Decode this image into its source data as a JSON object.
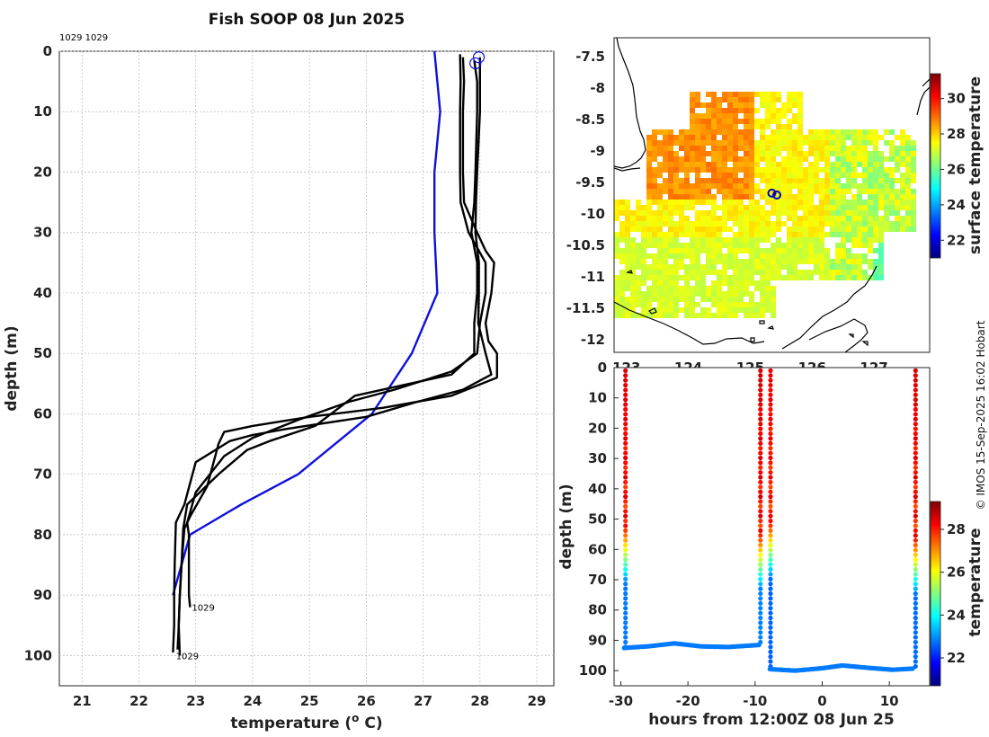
{
  "title": "Fish SOOP 08 Jun 2025",
  "header_ids": "1029 1029",
  "credit": "© IMOS 15-Sep-2025 16:02 Hobart",
  "colors": {
    "profile": "#000000",
    "climatology": "#1010dd",
    "grid": "#b8b8b8"
  },
  "chart_data": [
    {
      "type": "line",
      "name": "temperature-profiles",
      "xlabel": "temperature (",
      "xlabel_sup": "o",
      "xlabel_end": " C)",
      "ylabel": "depth (m)",
      "xlim": [
        20.6,
        29.3
      ],
      "ylim": [
        105,
        0
      ],
      "xticks": [
        21,
        22,
        23,
        24,
        25,
        26,
        27,
        28,
        29
      ],
      "yticks": [
        0,
        10,
        20,
        30,
        40,
        50,
        60,
        70,
        80,
        90,
        100
      ],
      "series": [
        {
          "name": "climatology",
          "color": "#1010dd",
          "points": [
            [
              27.2,
              0
            ],
            [
              27.25,
              5
            ],
            [
              27.3,
              10
            ],
            [
              27.2,
              20
            ],
            [
              27.2,
              30
            ],
            [
              27.25,
              40
            ],
            [
              26.8,
              50
            ],
            [
              26.1,
              60
            ],
            [
              24.8,
              70
            ],
            [
              23.8,
              75
            ],
            [
              22.9,
              80
            ],
            [
              22.75,
              85
            ],
            [
              22.6,
              90
            ]
          ]
        },
        {
          "name": "profile-1",
          "color": "#000000",
          "points": [
            [
              27.7,
              1
            ],
            [
              27.72,
              5
            ],
            [
              27.7,
              10
            ],
            [
              27.7,
              20
            ],
            [
              27.72,
              25
            ],
            [
              27.95,
              30
            ],
            [
              28.1,
              33
            ],
            [
              28.25,
              35
            ],
            [
              28.2,
              40
            ],
            [
              28.1,
              45
            ],
            [
              28.15,
              48
            ],
            [
              28.3,
              50
            ],
            [
              28.3,
              54
            ],
            [
              27.5,
              57
            ],
            [
              26.3,
              59
            ],
            [
              25.0,
              60.5
            ],
            [
              24.0,
              62
            ],
            [
              23.5,
              63
            ],
            [
              23.4,
              65
            ],
            [
              23.2,
              72
            ],
            [
              22.9,
              77
            ],
            [
              22.8,
              79
            ],
            [
              22.75,
              85
            ],
            [
              22.72,
              90
            ],
            [
              22.7,
              95
            ],
            [
              22.68,
              99
            ]
          ]
        },
        {
          "name": "profile-2",
          "color": "#000000",
          "points": [
            [
              27.65,
              0.5
            ],
            [
              27.66,
              5
            ],
            [
              27.65,
              10
            ],
            [
              27.65,
              20
            ],
            [
              27.66,
              25
            ],
            [
              27.8,
              30
            ],
            [
              28.1,
              35
            ],
            [
              28.1,
              40
            ],
            [
              28.0,
              45
            ],
            [
              27.95,
              50
            ],
            [
              27.5,
              53
            ],
            [
              26.5,
              56
            ],
            [
              25.7,
              58
            ],
            [
              24.8,
              61
            ],
            [
              24.0,
              64
            ],
            [
              23.5,
              67
            ],
            [
              23.0,
              73
            ],
            [
              22.85,
              78
            ],
            [
              22.88,
              80
            ],
            [
              22.88,
              85
            ],
            [
              22.88,
              90
            ],
            [
              22.9,
              92
            ]
          ]
        },
        {
          "name": "profile-3",
          "color": "#000000",
          "points": [
            [
              27.9,
              1.5
            ],
            [
              27.95,
              5
            ],
            [
              27.95,
              10
            ],
            [
              27.92,
              20
            ],
            [
              27.9,
              25
            ],
            [
              27.85,
              30
            ],
            [
              27.95,
              35
            ],
            [
              27.95,
              40
            ],
            [
              27.9,
              45
            ],
            [
              27.9,
              50
            ],
            [
              27.5,
              53.5
            ],
            [
              25.8,
              57
            ],
            [
              25.1,
              62
            ],
            [
              24.3,
              64.5
            ],
            [
              23.9,
              66
            ],
            [
              23.4,
              70
            ],
            [
              22.85,
              75
            ],
            [
              22.78,
              79
            ],
            [
              22.75,
              85
            ],
            [
              22.72,
              90
            ],
            [
              22.7,
              95
            ],
            [
              22.72,
              100
            ]
          ]
        },
        {
          "name": "profile-4",
          "color": "#000000",
          "points": [
            [
              28.0,
              1
            ],
            [
              28.0,
              5
            ],
            [
              28.0,
              10
            ],
            [
              27.95,
              20
            ],
            [
              27.93,
              25
            ],
            [
              27.92,
              30
            ],
            [
              27.98,
              35
            ],
            [
              27.98,
              40
            ],
            [
              27.97,
              45
            ],
            [
              28.1,
              50
            ],
            [
              28.2,
              53.5
            ],
            [
              27.7,
              56
            ],
            [
              26.9,
              58
            ],
            [
              26.0,
              60.5
            ],
            [
              24.6,
              62.5
            ],
            [
              24.0,
              63.5
            ],
            [
              23.6,
              64.5
            ],
            [
              23.0,
              68
            ],
            [
              22.8,
              75
            ],
            [
              22.65,
              78
            ],
            [
              22.63,
              85
            ],
            [
              22.62,
              90
            ],
            [
              22.62,
              95
            ],
            [
              22.6,
              99.5
            ]
          ]
        }
      ],
      "start_markers": [
        [
          27.92,
          2
        ],
        [
          27.98,
          1
        ]
      ],
      "end_labels": [
        {
          "text": "1029",
          "x": 22.9,
          "y": 92
        },
        {
          "text": "1029",
          "x": 22.62,
          "y": 100
        }
      ]
    },
    {
      "type": "heatmap",
      "name": "sst-map",
      "colorbar_label": "surface temperature",
      "colorbar_ticks": [
        22,
        24,
        26,
        28,
        30
      ],
      "colorbar_range": [
        21,
        31.4
      ],
      "lon_range": [
        122.8,
        127.9
      ],
      "lat_range": [
        -12.2,
        -7.2
      ],
      "xticks": [
        123,
        124,
        125,
        126,
        127
      ],
      "yticks": [
        -7.5,
        -8,
        -8.5,
        -9,
        -9.5,
        -10,
        -10.5,
        -11,
        -11.5,
        -12
      ],
      "ytick_labels": [
        "-7.5",
        "-8",
        "-8.5",
        "-9",
        "-9.5",
        "-10",
        "-10.5",
        "-11",
        "-11.5",
        "-12"
      ],
      "tow_positions": [
        [
          125.35,
          -9.67
        ],
        [
          125.43,
          -9.7
        ]
      ]
    },
    {
      "type": "scatter",
      "name": "time-depth-section",
      "xlabel": "hours from 12:00Z 08 Jun 25",
      "ylabel": "depth (m)",
      "colorbar_label": "temperature",
      "colorbar_ticks": [
        22,
        24,
        26,
        28
      ],
      "colorbar_range": [
        20.7,
        29.3
      ],
      "xlim": [
        -31,
        16
      ],
      "ylim": [
        105,
        0
      ],
      "xticks": [
        -30,
        -20,
        -10,
        0,
        10
      ],
      "yticks": [
        0,
        10,
        20,
        30,
        40,
        50,
        60,
        70,
        80,
        90,
        100
      ],
      "bottom_segments": [
        {
          "x": [
            -29.5,
            -26,
            -22,
            -18,
            -14,
            -9.2
          ],
          "depth": [
            92.5,
            92,
            91,
            92,
            92.2,
            91.5
          ]
        },
        {
          "x": [
            -7.8,
            -4,
            0,
            3,
            7,
            10.5,
            13.7
          ],
          "depth": [
            99.5,
            100,
            99.2,
            98.3,
            99.1,
            99.7,
            99.3
          ]
        }
      ],
      "vertical_profiles": [
        {
          "x": -29.3,
          "bottom": 92.5,
          "surface": 28.5,
          "thermocline": 57,
          "deep": 22.8
        },
        {
          "x": -9.2,
          "bottom": 91.5,
          "surface": 28.6,
          "thermocline": 59,
          "deep": 22.9
        },
        {
          "x": -7.7,
          "bottom": 99.5,
          "surface": 28.4,
          "thermocline": 56,
          "deep": 22.6
        },
        {
          "x": 13.9,
          "bottom": 99.3,
          "surface": 28.5,
          "thermocline": 61,
          "deep": 22.7
        }
      ]
    }
  ]
}
